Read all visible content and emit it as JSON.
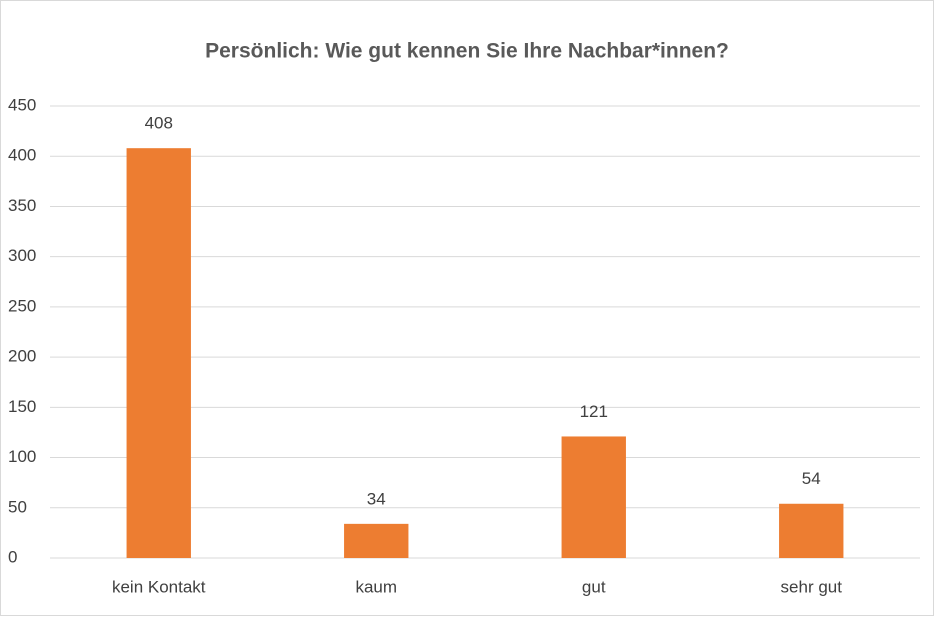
{
  "chart_data": {
    "type": "bar",
    "title": "Persönlich: Wie gut kennen Sie Ihre Nachbar*innen?",
    "categories": [
      "kein Kontakt",
      "kaum",
      "gut",
      "sehr gut"
    ],
    "values": [
      408,
      34,
      121,
      54
    ],
    "color": "#ed7d31",
    "ylim": [
      0,
      450
    ],
    "yticks": [
      0,
      50,
      100,
      150,
      200,
      250,
      300,
      350,
      400,
      450
    ],
    "grid": true
  }
}
